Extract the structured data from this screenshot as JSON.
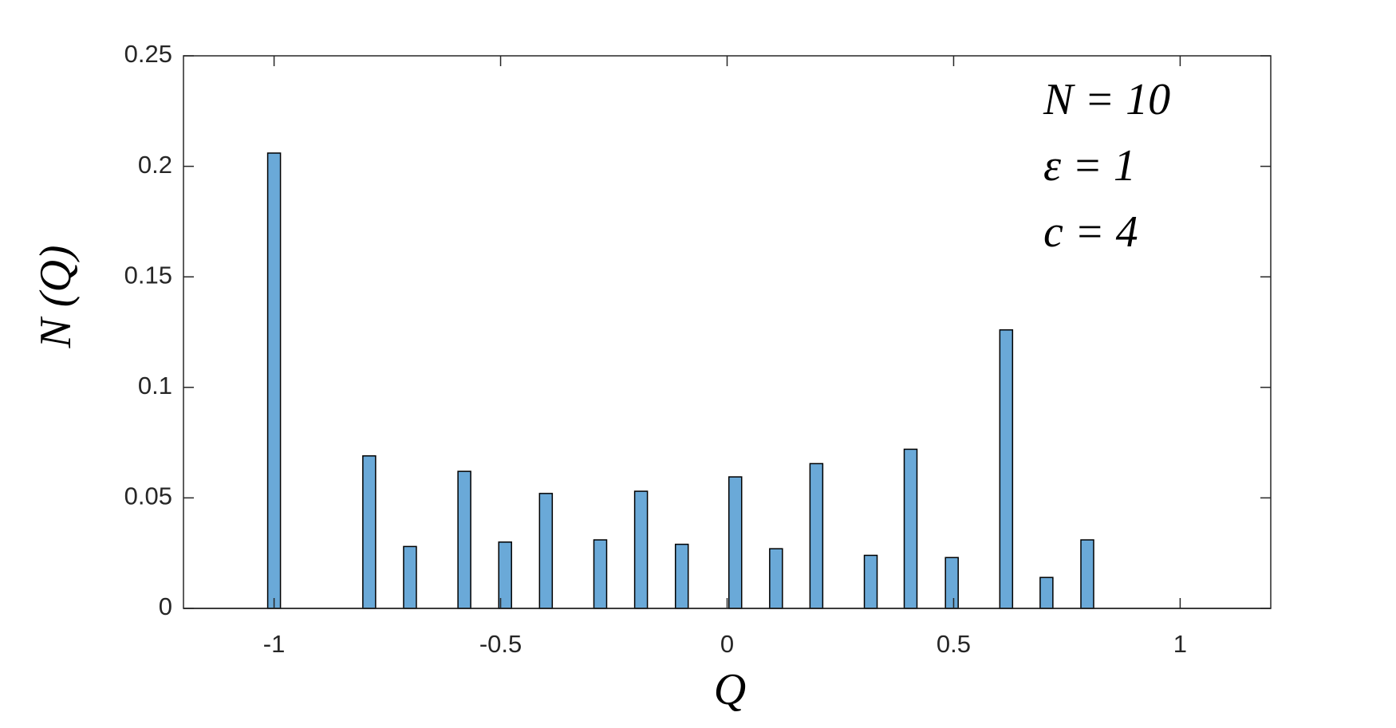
{
  "chart_data": {
    "type": "bar",
    "x": [
      -1,
      -0.79,
      -0.7,
      -0.58,
      -0.49,
      -0.4,
      -0.28,
      -0.19,
      -0.1,
      0.018,
      0.108,
      0.197,
      0.317,
      0.405,
      0.496,
      0.616,
      0.705,
      0.795
    ],
    "values": [
      0.206,
      0.069,
      0.028,
      0.062,
      0.03,
      0.052,
      0.031,
      0.053,
      0.029,
      0.0595,
      0.027,
      0.0655,
      0.024,
      0.072,
      0.023,
      0.126,
      0.014,
      0.031
    ],
    "color": "#6aa9d8",
    "xlim": [
      -1.2,
      1.2
    ],
    "xticks": [
      -1,
      -0.5,
      0,
      0.5,
      1
    ],
    "ylim": [
      0,
      0.25
    ],
    "yticks": [
      0,
      0.05,
      0.1,
      0.15,
      0.2,
      0.25
    ],
    "x_label": "Q",
    "y_label": "N (Q)",
    "annotations": [
      "N = 10",
      "ε = 1",
      "c = 4"
    ]
  }
}
